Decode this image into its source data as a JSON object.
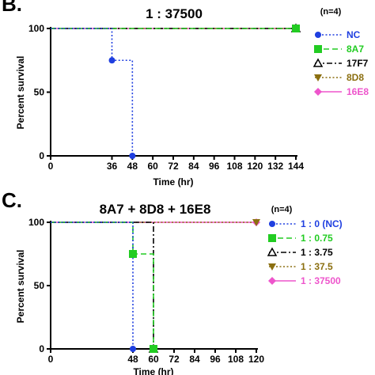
{
  "chart_data": [
    {
      "panel": "B.",
      "type": "line",
      "title": "1 : 37500",
      "xlabel": "Time (hr)",
      "ylabel": "Percent survival",
      "xlim": [
        0,
        144
      ],
      "ylim": [
        0,
        100
      ],
      "xticks": [
        0,
        36,
        48,
        60,
        72,
        84,
        96,
        108,
        120,
        132,
        144
      ],
      "yticks": [
        0,
        50,
        100
      ],
      "legend_title": "(n=4)",
      "legend_position": "right",
      "series": [
        {
          "name": "NC",
          "color": "#1f3fe0",
          "marker": "circle",
          "dash": "dotted",
          "x": [
            0,
            36,
            48
          ],
          "y": [
            100,
            75,
            0
          ]
        },
        {
          "name": "8A7",
          "color": "#22cc22",
          "marker": "square",
          "dash": "dashed",
          "x": [
            0,
            144
          ],
          "y": [
            100,
            100
          ]
        },
        {
          "name": "17F7",
          "color": "#000000",
          "marker": "triangle-open",
          "dash": "dashdot",
          "x": [
            0,
            144
          ],
          "y": [
            100,
            100
          ]
        },
        {
          "name": "8D8",
          "color": "#8b6f10",
          "marker": "triangle-down",
          "dash": "dotted",
          "x": [
            0,
            144
          ],
          "y": [
            100,
            100
          ]
        },
        {
          "name": "16E8",
          "color": "#ee55cc",
          "marker": "diamond",
          "dash": "solid",
          "x": [
            0,
            144
          ],
          "y": [
            100,
            100
          ]
        }
      ]
    },
    {
      "panel": "C.",
      "type": "line",
      "title": "8A7 + 8D8 + 16E8",
      "xlabel": "Time (hr)",
      "ylabel": "Percent survival",
      "xlim": [
        0,
        120
      ],
      "ylim": [
        0,
        100
      ],
      "xticks": [
        0,
        48,
        60,
        72,
        84,
        96,
        108,
        120
      ],
      "yticks": [
        0,
        50,
        100
      ],
      "legend_title": "(n=4)",
      "legend_position": "right",
      "series": [
        {
          "name": "1 : 0 (NC)",
          "color": "#1f3fe0",
          "marker": "circle",
          "dash": "dotted",
          "x": [
            0,
            48
          ],
          "y": [
            100,
            0
          ]
        },
        {
          "name": "1 : 0.75",
          "color": "#22cc22",
          "marker": "square",
          "dash": "dashed",
          "x": [
            0,
            48,
            60
          ],
          "y": [
            100,
            75,
            0
          ]
        },
        {
          "name": "1 : 3.75",
          "color": "#000000",
          "marker": "triangle-open",
          "dash": "dashdot",
          "x": [
            0,
            60
          ],
          "y": [
            100,
            0
          ]
        },
        {
          "name": "1 : 37.5",
          "color": "#8b6f10",
          "marker": "triangle-down",
          "dash": "dotted",
          "x": [
            0,
            120
          ],
          "y": [
            100,
            100
          ]
        },
        {
          "name": "1 : 37500",
          "color": "#ee55cc",
          "marker": "diamond",
          "dash": "solid",
          "x": [
            0,
            120
          ],
          "y": [
            100,
            100
          ]
        }
      ]
    }
  ]
}
